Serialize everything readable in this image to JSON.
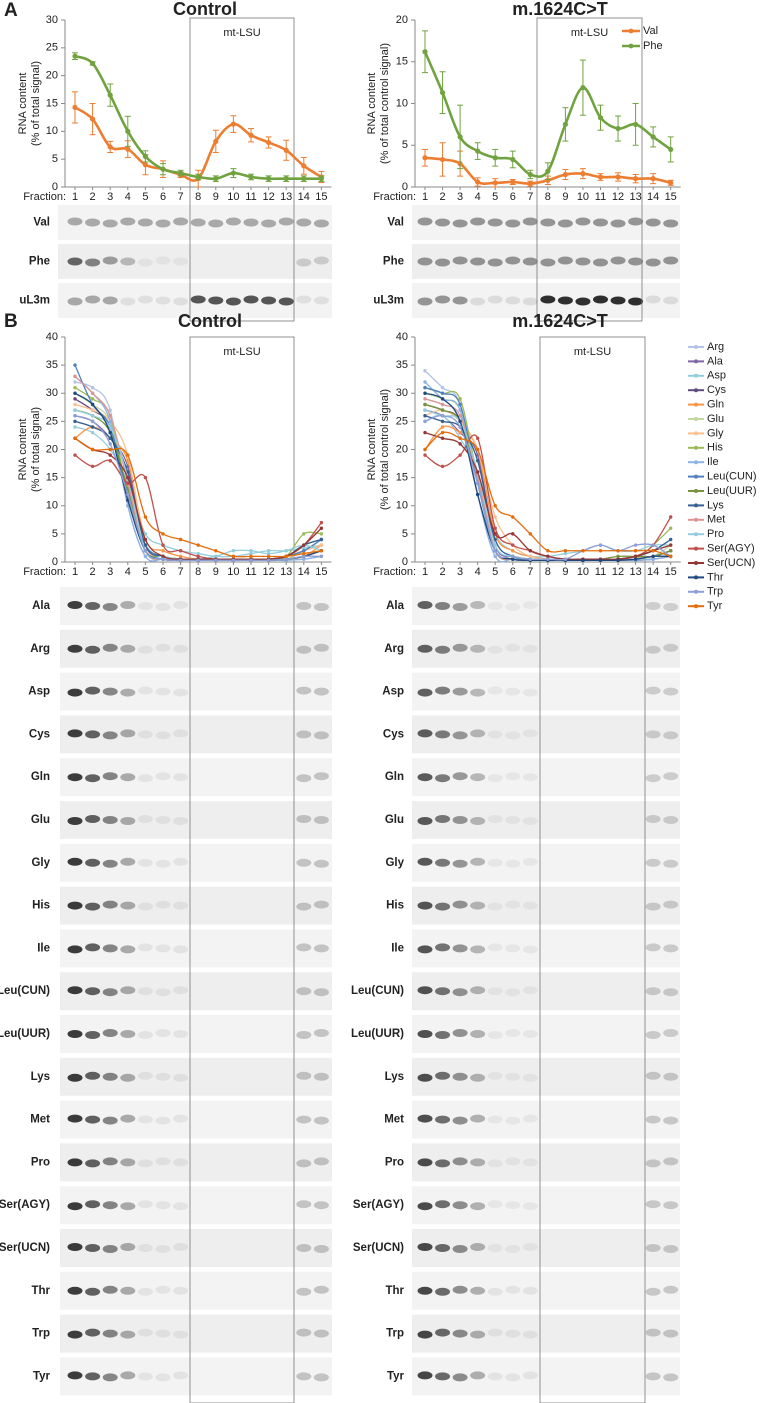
{
  "figure": {
    "panels": [
      "A",
      "B"
    ]
  },
  "chart_data": [
    {
      "type": "line",
      "title": "Control",
      "ylabel": [
        "RNA content",
        "(% of total signal)"
      ],
      "xlabel": "Fraction:",
      "box_label": "mt-LSU",
      "categories": [
        "1",
        "2",
        "3",
        "4",
        "5",
        "6",
        "7",
        "8",
        "9",
        "10",
        "11",
        "12",
        "13",
        "14",
        "15"
      ],
      "ylim": [
        0,
        30
      ],
      "yticks": [
        0,
        5,
        10,
        15,
        20,
        25,
        30
      ],
      "legend": false,
      "series": [
        {
          "name": "Val",
          "color": "#ed7d31",
          "values": [
            14.3,
            12.2,
            7.2,
            6.8,
            4.0,
            3.2,
            2.2,
            1.5,
            8.2,
            11.3,
            9.3,
            8.0,
            6.6,
            3.8,
            1.8
          ],
          "errors": [
            2.8,
            2.8,
            1.0,
            1.5,
            1.8,
            1.5,
            0.5,
            1.5,
            2.0,
            1.5,
            1.2,
            1.0,
            1.8,
            1.5,
            1.0
          ]
        },
        {
          "name": "Phe",
          "color": "#70a340",
          "values": [
            23.5,
            22.2,
            16.5,
            10.0,
            5.5,
            3.2,
            2.5,
            1.8,
            1.5,
            2.5,
            1.8,
            1.5,
            1.5,
            1.5,
            1.5
          ],
          "errors": [
            0.6,
            0.3,
            2.0,
            2.7,
            1.0,
            1.0,
            0.5,
            0.5,
            0.5,
            0.8,
            0.5,
            0.5,
            0.5,
            0.5,
            0.5
          ]
        }
      ],
      "blot_rows": [
        "Val",
        "Phe",
        "uL3m"
      ]
    },
    {
      "type": "line",
      "title": "m.1624C>T",
      "ylabel": [
        "RNA content",
        "(% of total control signal)"
      ],
      "xlabel": "Fraction:",
      "box_label": "mt-LSU",
      "categories": [
        "1",
        "2",
        "3",
        "4",
        "5",
        "6",
        "7",
        "8",
        "9",
        "10",
        "11",
        "12",
        "13",
        "14",
        "15"
      ],
      "ylim": [
        0,
        20
      ],
      "yticks": [
        0,
        5,
        10,
        15,
        20
      ],
      "legend": true,
      "series": [
        {
          "name": "Val",
          "color": "#ed7d31",
          "values": [
            3.5,
            3.3,
            2.8,
            0.6,
            0.5,
            0.6,
            0.4,
            0.8,
            1.5,
            1.6,
            1.2,
            1.2,
            1.0,
            1.0,
            0.5
          ],
          "errors": [
            1.0,
            2.0,
            1.5,
            0.5,
            0.5,
            0.3,
            0.3,
            0.5,
            0.6,
            0.6,
            0.4,
            0.5,
            0.5,
            0.6,
            0.3
          ]
        },
        {
          "name": "Phe",
          "color": "#70a340",
          "values": [
            16.2,
            11.3,
            6.0,
            4.3,
            3.5,
            3.3,
            1.5,
            1.9,
            7.5,
            11.9,
            8.3,
            7.0,
            7.5,
            6.0,
            4.5
          ],
          "errors": [
            2.5,
            2.5,
            3.8,
            1.0,
            1.0,
            1.0,
            0.5,
            1.0,
            2.0,
            3.3,
            1.5,
            1.5,
            2.5,
            1.2,
            1.5
          ]
        }
      ],
      "blot_rows": [
        "Val",
        "Phe",
        "uL3m"
      ]
    },
    {
      "type": "line",
      "title": "Control",
      "ylabel": [
        "RNA content",
        "(% of total signal)"
      ],
      "xlabel": "Fraction:",
      "box_label": "mt-LSU",
      "categories": [
        "1",
        "2",
        "3",
        "4",
        "5",
        "6",
        "7",
        "8",
        "9",
        "10",
        "11",
        "12",
        "13",
        "14",
        "15"
      ],
      "ylim": [
        0,
        40
      ],
      "yticks": [
        0,
        5,
        10,
        15,
        20,
        25,
        30,
        35,
        40
      ],
      "legend": false,
      "series": [
        {
          "name": "Arg",
          "color": "#b3c2e6",
          "values": [
            32,
            31,
            27,
            10,
            1,
            0.5,
            0.5,
            0.5,
            0.5,
            0.5,
            0.5,
            0.5,
            0.5,
            0.5,
            1
          ]
        },
        {
          "name": "Ala",
          "color": "#8064a2",
          "values": [
            26,
            25,
            22,
            17,
            3,
            1,
            0.5,
            0.5,
            0.5,
            0.5,
            0.5,
            0.5,
            1,
            2,
            3
          ]
        },
        {
          "name": "Asp",
          "color": "#93cddd",
          "values": [
            24,
            23,
            20,
            14,
            5,
            3,
            2,
            1.5,
            1,
            1,
            1.5,
            2,
            2,
            2.5,
            3
          ]
        },
        {
          "name": "Cys",
          "color": "#604a7b",
          "values": [
            29,
            27,
            24,
            12,
            2,
            0.5,
            0.3,
            0.3,
            0.3,
            0.3,
            0.3,
            0.3,
            0.5,
            1,
            2
          ]
        },
        {
          "name": "Gln",
          "color": "#f79646",
          "values": [
            22,
            24,
            22,
            18,
            4,
            2,
            1,
            0.5,
            0.5,
            0.5,
            0.5,
            0.5,
            0.5,
            1,
            3
          ]
        },
        {
          "name": "Glu",
          "color": "#c3d69b",
          "values": [
            30,
            28,
            25,
            15,
            2,
            0.5,
            0.3,
            0.3,
            0.3,
            0.3,
            0.3,
            0.3,
            0.5,
            2,
            4
          ]
        },
        {
          "name": "Gly",
          "color": "#fac090",
          "values": [
            28,
            27,
            25,
            19,
            3,
            1,
            0.5,
            0.5,
            0.5,
            0.5,
            0.5,
            0.5,
            1,
            2,
            3
          ]
        },
        {
          "name": "His",
          "color": "#9bbb59",
          "values": [
            31,
            29,
            26,
            12,
            2,
            1,
            0.5,
            0.5,
            0.5,
            0.5,
            0.5,
            0.5,
            1,
            5,
            5
          ]
        },
        {
          "name": "Ile",
          "color": "#8db3e2",
          "values": [
            33,
            30,
            25,
            10,
            1,
            0.5,
            0.3,
            0.3,
            0.3,
            0.3,
            0.3,
            0.3,
            0.3,
            0.5,
            1
          ]
        },
        {
          "name": "Leu(CUN)",
          "color": "#4f81bd",
          "values": [
            35,
            28,
            24,
            12,
            3,
            1,
            0.5,
            0.5,
            0.5,
            0.5,
            0.5,
            0.5,
            1,
            2,
            4
          ]
        },
        {
          "name": "Leu(UUR)",
          "color": "#77933c",
          "values": [
            27,
            26,
            23,
            13,
            2,
            1,
            0.5,
            0.5,
            0.5,
            0.5,
            0.5,
            0.5,
            0.5,
            1,
            2
          ]
        },
        {
          "name": "Lys",
          "color": "#366092",
          "values": [
            25,
            24,
            22,
            16,
            3,
            1,
            0.5,
            0.3,
            0.3,
            0.3,
            0.3,
            0.5,
            1,
            3,
            4
          ]
        },
        {
          "name": "Met",
          "color": "#d99694",
          "values": [
            33,
            30,
            26,
            14,
            2,
            0.5,
            0.3,
            0.3,
            0.3,
            0.3,
            0.3,
            0.3,
            0.5,
            1,
            2
          ]
        },
        {
          "name": "Pro",
          "color": "#92cddc",
          "values": [
            27,
            26,
            24,
            15,
            2,
            1,
            0.5,
            0.5,
            1,
            2,
            2,
            1.5,
            2,
            3,
            2
          ]
        },
        {
          "name": "Ser(AGY)",
          "color": "#c0504d",
          "values": [
            19,
            17,
            18,
            14,
            15,
            3,
            2,
            1,
            0.5,
            0.5,
            0.5,
            0.5,
            1,
            3,
            7
          ]
        },
        {
          "name": "Ser(UCN)",
          "color": "#953735",
          "values": [
            22,
            20,
            19,
            15,
            4,
            1,
            0.5,
            0.5,
            0.5,
            0.5,
            0.5,
            0.5,
            1,
            3,
            6
          ]
        },
        {
          "name": "Thr",
          "color": "#1f497d",
          "values": [
            30,
            28,
            23,
            11,
            2,
            0.5,
            0.3,
            0.3,
            0.3,
            0.3,
            0.3,
            0.3,
            0.5,
            1,
            2
          ]
        },
        {
          "name": "Trp",
          "color": "#8e9fd6",
          "values": [
            26,
            25,
            21,
            12,
            2,
            0.5,
            0.3,
            0.3,
            0.3,
            0.3,
            0.3,
            0.3,
            0.5,
            1,
            1
          ]
        },
        {
          "name": "Tyr",
          "color": "#e46c0a",
          "values": [
            22,
            20,
            20,
            19,
            8,
            5,
            4,
            3,
            2,
            1,
            1,
            1,
            1,
            1.5,
            2
          ]
        }
      ],
      "blot_rows": [
        "Ala",
        "Arg",
        "Asp",
        "Cys",
        "Gln",
        "Glu",
        "Gly",
        "His",
        "Ile",
        "Leu(CUN)",
        "Leu(UUR)",
        "Lys",
        "Met",
        "Pro",
        "Ser(AGY)",
        "Ser(UCN)",
        "Thr",
        "Trp",
        "Tyr"
      ]
    },
    {
      "type": "line",
      "title": "m.1624C>T",
      "ylabel": [
        "RNA content",
        "(% of total control signal)"
      ],
      "xlabel": "Fraction:",
      "box_label": "mt-LSU",
      "categories": [
        "1",
        "2",
        "3",
        "4",
        "5",
        "6",
        "7",
        "8",
        "9",
        "10",
        "11",
        "12",
        "13",
        "14",
        "15"
      ],
      "ylim": [
        0,
        40
      ],
      "yticks": [
        0,
        5,
        10,
        15,
        20,
        25,
        30,
        35,
        40
      ],
      "legend": true,
      "series": [
        {
          "name": "Arg",
          "color": "#b3c2e6",
          "values": [
            34,
            31,
            28,
            12,
            1,
            0.5,
            0.3,
            0.3,
            0.3,
            0.3,
            0.3,
            0.3,
            0.3,
            0.5,
            1
          ]
        },
        {
          "name": "Ala",
          "color": "#8064a2",
          "values": [
            27,
            26,
            23,
            19,
            3,
            1,
            0.5,
            0.5,
            0.5,
            0.5,
            0.5,
            0.5,
            1,
            1,
            2
          ]
        },
        {
          "name": "Asp",
          "color": "#93cddd",
          "values": [
            25,
            26,
            22,
            16,
            5,
            2,
            1,
            1,
            1.5,
            2,
            3,
            2,
            2,
            3,
            3
          ]
        },
        {
          "name": "Cys",
          "color": "#604a7b",
          "values": [
            28,
            27,
            25,
            14,
            2,
            0.5,
            0.3,
            0.3,
            0.3,
            0.3,
            0.3,
            0.3,
            0.3,
            0.5,
            1
          ]
        },
        {
          "name": "Gln",
          "color": "#f79646",
          "values": [
            20,
            24,
            23,
            20,
            5,
            2,
            1,
            0.5,
            0.5,
            0.5,
            0.5,
            0.5,
            0.5,
            1,
            2
          ]
        },
        {
          "name": "Glu",
          "color": "#c3d69b",
          "values": [
            30,
            29,
            27,
            15,
            2,
            0.5,
            0.3,
            0.3,
            0.3,
            0.3,
            0.3,
            0.3,
            0.5,
            1,
            3
          ]
        },
        {
          "name": "Gly",
          "color": "#fac090",
          "values": [
            26,
            27,
            25,
            20,
            8,
            3,
            1,
            0.5,
            0.5,
            0.5,
            0.5,
            0.5,
            1,
            2,
            3
          ]
        },
        {
          "name": "His",
          "color": "#9bbb59",
          "values": [
            31,
            30,
            29,
            15,
            2,
            1,
            0.5,
            0.5,
            0.5,
            0.5,
            0.5,
            0.5,
            0.5,
            3,
            6
          ]
        },
        {
          "name": "Ile",
          "color": "#8db3e2",
          "values": [
            32,
            29,
            27,
            12,
            1,
            0.5,
            0.3,
            0.3,
            0.3,
            0.3,
            0.3,
            0.3,
            0.3,
            0.5,
            1
          ]
        },
        {
          "name": "Leu(CUN)",
          "color": "#4f81bd",
          "values": [
            31,
            30,
            28,
            14,
            2,
            0.5,
            0.3,
            0.3,
            0.3,
            0.3,
            0.3,
            0.3,
            0.5,
            1,
            2
          ]
        },
        {
          "name": "Leu(UUR)",
          "color": "#77933c",
          "values": [
            28,
            27,
            25,
            15,
            2,
            1,
            0.5,
            0.5,
            0.5,
            0.5,
            0.5,
            1,
            1,
            1,
            2
          ]
        },
        {
          "name": "Lys",
          "color": "#366092",
          "values": [
            26,
            25,
            24,
            18,
            4,
            1,
            0.5,
            0.3,
            0.3,
            0.3,
            0.3,
            0.5,
            1,
            2,
            4
          ]
        },
        {
          "name": "Met",
          "color": "#d99694",
          "values": [
            29,
            28,
            26,
            15,
            2,
            0.5,
            0.3,
            0.3,
            0.3,
            0.3,
            0.3,
            0.3,
            0.5,
            1,
            1
          ]
        },
        {
          "name": "Pro",
          "color": "#92cddc",
          "values": [
            27,
            26,
            25,
            16,
            3,
            1,
            0.5,
            0.5,
            0.5,
            0.5,
            0.5,
            0.5,
            0.5,
            1,
            1
          ]
        },
        {
          "name": "Ser(AGY)",
          "color": "#c0504d",
          "values": [
            19,
            17,
            19,
            22,
            6,
            3,
            2,
            1,
            0.5,
            0.5,
            0.5,
            0.5,
            1,
            3,
            8
          ]
        },
        {
          "name": "Ser(UCN)",
          "color": "#953735",
          "values": [
            23,
            22,
            21,
            16,
            5,
            5,
            2,
            1,
            0.5,
            0.5,
            0.5,
            0.5,
            1,
            2,
            3
          ]
        },
        {
          "name": "Thr",
          "color": "#1f497d",
          "values": [
            30,
            29,
            25,
            12,
            2,
            0.5,
            0.3,
            0.3,
            0.3,
            0.3,
            0.3,
            0.3,
            0.5,
            1,
            1
          ]
        },
        {
          "name": "Trp",
          "color": "#8e9fd6",
          "values": [
            25,
            26,
            24,
            14,
            2,
            1,
            0.5,
            0.5,
            0.5,
            2,
            3,
            2,
            3,
            3,
            1
          ]
        },
        {
          "name": "Tyr",
          "color": "#e46c0a",
          "values": [
            20,
            23,
            22,
            20,
            10,
            8,
            5,
            2,
            2,
            2,
            2,
            2,
            2,
            2,
            1
          ]
        }
      ],
      "blot_rows": [
        "Ala",
        "Arg",
        "Asp",
        "Cys",
        "Gln",
        "Glu",
        "Gly",
        "His",
        "Ile",
        "Leu(CUN)",
        "Leu(UUR)",
        "Lys",
        "Met",
        "Pro",
        "Ser(AGY)",
        "Ser(UCN)",
        "Thr",
        "Trp",
        "Tyr"
      ]
    }
  ]
}
